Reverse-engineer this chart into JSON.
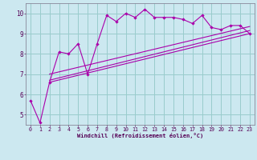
{
  "xlabel": "Windchill (Refroidissement éolien,°C)",
  "bg_color": "#cce8f0",
  "line_color": "#aa00aa",
  "grid_color": "#99cccc",
  "xlim": [
    -0.5,
    23.5
  ],
  "ylim": [
    4.5,
    10.5
  ],
  "xticks": [
    0,
    1,
    2,
    3,
    4,
    5,
    6,
    7,
    8,
    9,
    10,
    11,
    12,
    13,
    14,
    15,
    16,
    17,
    18,
    19,
    20,
    21,
    22,
    23
  ],
  "yticks": [
    5,
    6,
    7,
    8,
    9,
    10
  ],
  "main_x": [
    0,
    1,
    2,
    3,
    4,
    5,
    6,
    7,
    8,
    9,
    10,
    11,
    12,
    13,
    14,
    15,
    16,
    17,
    18,
    19,
    20,
    21,
    22,
    23
  ],
  "main_y": [
    5.7,
    4.6,
    6.6,
    8.1,
    8.0,
    8.5,
    7.0,
    8.5,
    9.9,
    9.6,
    10.0,
    9.8,
    10.2,
    9.8,
    9.8,
    9.8,
    9.7,
    9.5,
    9.9,
    9.3,
    9.2,
    9.4,
    9.4,
    9.0
  ],
  "line1_x": [
    2,
    23
  ],
  "line1_y": [
    6.6,
    9.0
  ],
  "line2_x": [
    2,
    23
  ],
  "line2_y": [
    6.7,
    9.15
  ],
  "line3_x": [
    2,
    23
  ],
  "line3_y": [
    7.0,
    9.35
  ]
}
